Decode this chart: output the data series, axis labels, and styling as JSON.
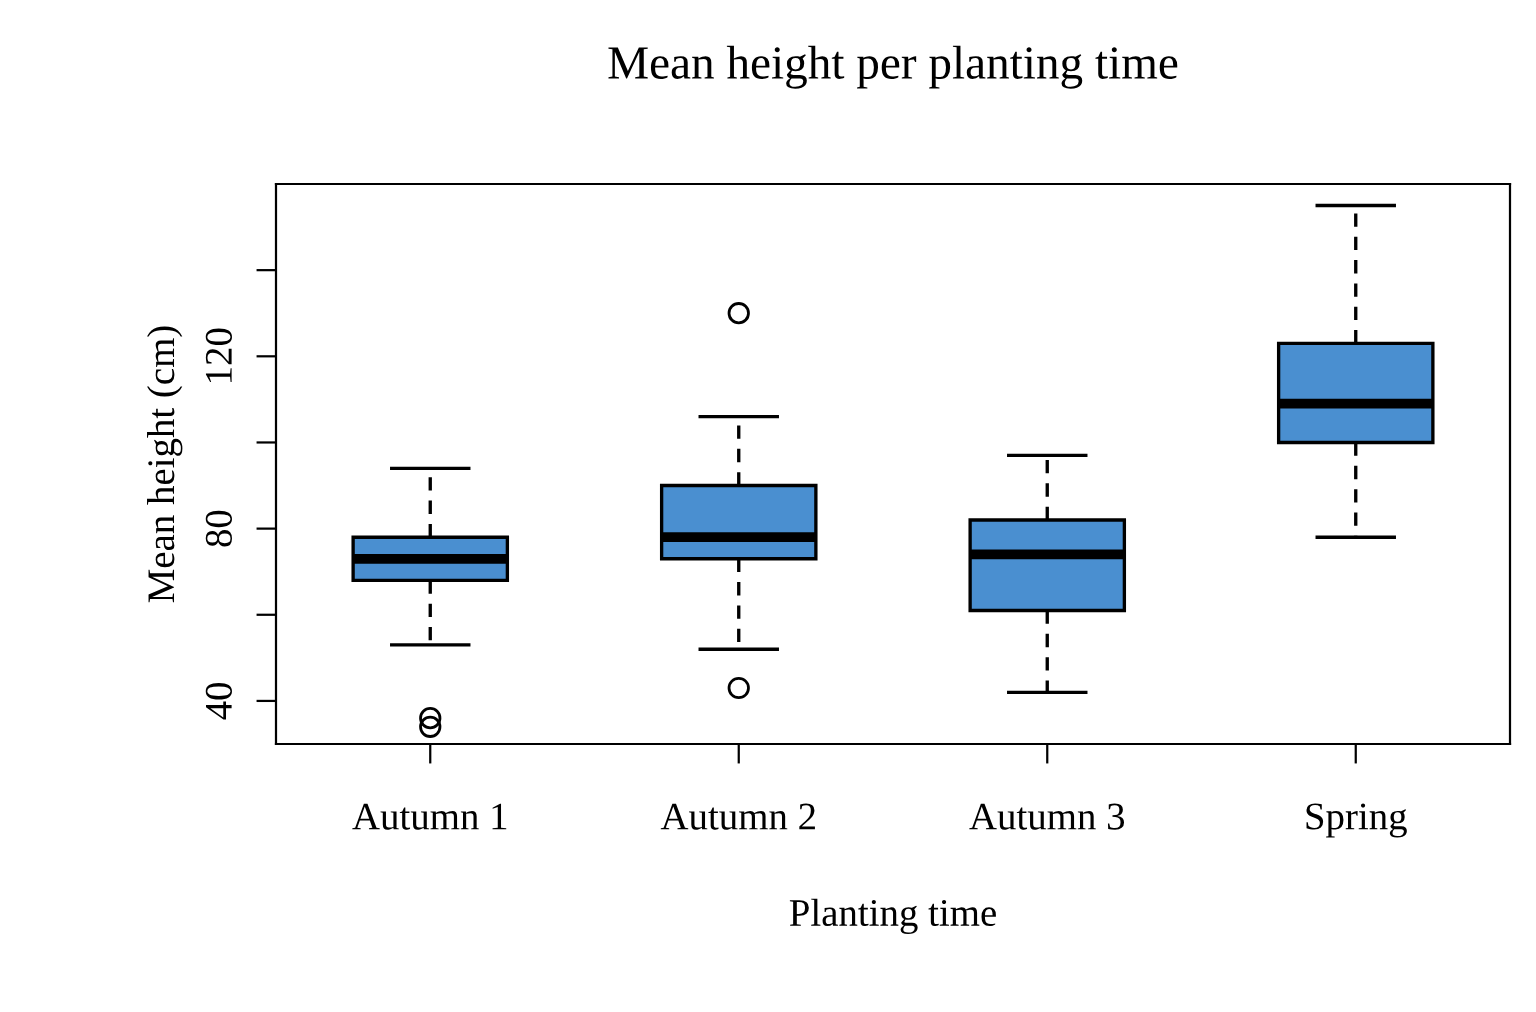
{
  "chart_data": {
    "type": "box",
    "title": "Mean height per planting time",
    "xlabel": "Planting time",
    "ylabel": "Mean height (cm)",
    "categories": [
      "Autumn 1",
      "Autumn 2",
      "Autumn 3",
      "Spring"
    ],
    "color": "#4a8fd0",
    "boxes": [
      {
        "low": 53,
        "q1": 68,
        "median": 73,
        "q3": 78,
        "high": 94,
        "outliers": [
          36,
          34
        ]
      },
      {
        "low": 52,
        "q1": 73,
        "median": 78,
        "q3": 90,
        "high": 106,
        "outliers": [
          130,
          43
        ]
      },
      {
        "low": 42,
        "q1": 61,
        "median": 74,
        "q3": 82,
        "high": 97
      },
      {
        "low": 78,
        "q1": 100,
        "median": 109,
        "q3": 123,
        "high": 155
      }
    ],
    "ylim": [
      30,
      160
    ],
    "yticks": [
      40,
      {
        "value": 60,
        "label": null
      },
      80,
      {
        "value": 100,
        "label": null
      },
      120,
      {
        "value": 140,
        "label": null
      }
    ],
    "grid": false,
    "legend": false
  }
}
